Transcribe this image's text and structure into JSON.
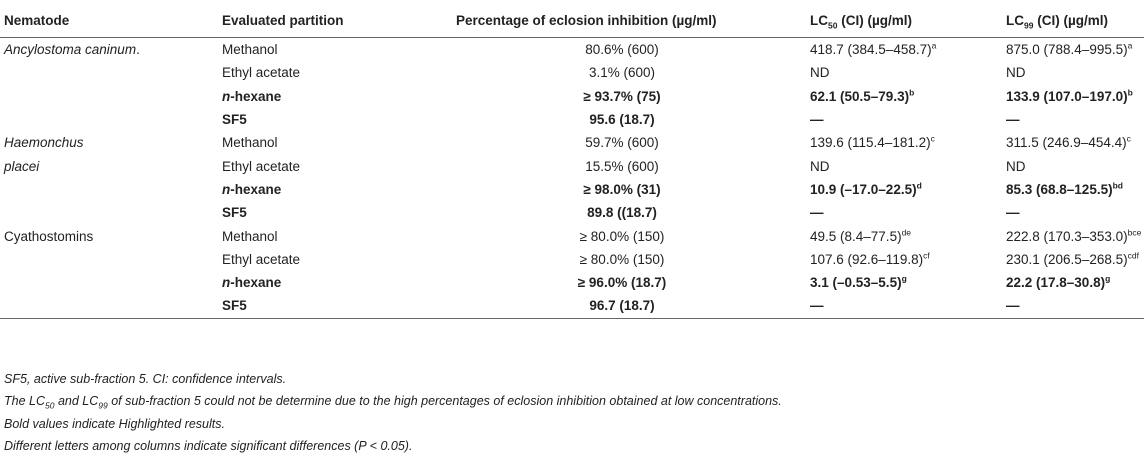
{
  "headers": {
    "nematode": "Nematode",
    "partition": "Evaluated partition",
    "inhibition": "Percentage of eclosion inhibition (µg/ml)",
    "lc50_prefix": "LC",
    "lc50_sub": "50",
    "lc50_suffix": " (CI) (µg/ml)",
    "lc99_prefix": "LC",
    "lc99_sub": "99",
    "lc99_suffix": " (CI) (µg/ml)"
  },
  "rows": [
    {
      "nematode": "Ancylostoma caninum",
      "nematode_tail": ".",
      "partition": "Methanol",
      "inhibition": "80.6% (600)",
      "lc50": "418.7 (384.5–458.7)",
      "lc50_sup": "a",
      "lc99": "875.0 (788.4–995.5)",
      "lc99_sup": "a"
    },
    {
      "nematode": "",
      "partition": "Ethyl acetate",
      "inhibition": "3.1% (600)",
      "lc50": "ND",
      "lc50_sup": "",
      "lc99": "ND",
      "lc99_sup": ""
    },
    {
      "nematode": "",
      "partition_italic": "n",
      "partition": "-hexane",
      "inhibition": "≥ 93.7% (75)",
      "lc50": "62.1 (50.5–79.3)",
      "lc50_sup": "b",
      "lc99": "133.9 (107.0–197.0)",
      "lc99_sup": "b"
    },
    {
      "nematode": "",
      "partition": "SF5",
      "inhibition": "95.6 (18.7)",
      "lc50": "—",
      "lc50_sup": "",
      "lc99": "—",
      "lc99_sup": ""
    },
    {
      "nematode": "Haemonchus",
      "partition": "Methanol",
      "inhibition": "59.7% (600)",
      "lc50": "139.6 (115.4–181.2)",
      "lc50_sup": "c",
      "lc99": "311.5 (246.9–454.4)",
      "lc99_sup": "c"
    },
    {
      "nematode": "placei",
      "partition": "Ethyl acetate",
      "inhibition": "15.5% (600)",
      "lc50": "ND",
      "lc50_sup": "",
      "lc99": "ND",
      "lc99_sup": ""
    },
    {
      "nematode": "",
      "partition_italic": "n",
      "partition": "-hexane",
      "inhibition": "≥ 98.0% (31)",
      "lc50": "10.9 (–17.0–22.5)",
      "lc50_sup": "d",
      "lc99": "85.3 (68.8–125.5)",
      "lc99_sup": "bd"
    },
    {
      "nematode": "",
      "partition": "SF5",
      "inhibition": "89.8 ((18.7)",
      "lc50": "—",
      "lc50_sup": "",
      "lc99": "—",
      "lc99_sup": ""
    },
    {
      "nematode": "Cyathostomins",
      "partition": "Methanol",
      "inhibition": "≥ 80.0% (150)",
      "lc50": "49.5 (8.4–77.5)",
      "lc50_sup": "de",
      "lc99": "222.8 (170.3–353.0)",
      "lc99_sup": "bce"
    },
    {
      "nematode": "",
      "partition": "Ethyl acetate",
      "inhibition": "≥ 80.0% (150)",
      "lc50": "107.6 (92.6–119.8)",
      "lc50_sup": "cf",
      "lc99": "230.1 (206.5–268.5)",
      "lc99_sup": "cdf"
    },
    {
      "nematode": "",
      "partition_italic": "n",
      "partition": "-hexane",
      "inhibition": "≥ 96.0% (18.7)",
      "lc50": "3.1 (–0.53–5.5)",
      "lc50_sup": "g",
      "lc99": "22.2 (17.8–30.8)",
      "lc99_sup": "g"
    },
    {
      "nematode": "",
      "partition": "SF5",
      "inhibition": "96.7 (18.7)",
      "lc50": "—",
      "lc50_sup": "",
      "lc99": "—",
      "lc99_sup": ""
    }
  ],
  "notes": {
    "n1": "SF5, active sub-fraction 5. CI: confidence intervals.",
    "n2_a": "The LC",
    "n2_sub1": "50",
    "n2_b": " and LC",
    "n2_sub2": "99",
    "n2_c": " of sub-fraction 5 could not be determine due to the high percentages of eclosion inhibition obtained at low concentrations.",
    "n3": "Bold values indicate Highlighted results.",
    "n4": "Different letters among columns indicate significant differences (P < 0.05)."
  }
}
